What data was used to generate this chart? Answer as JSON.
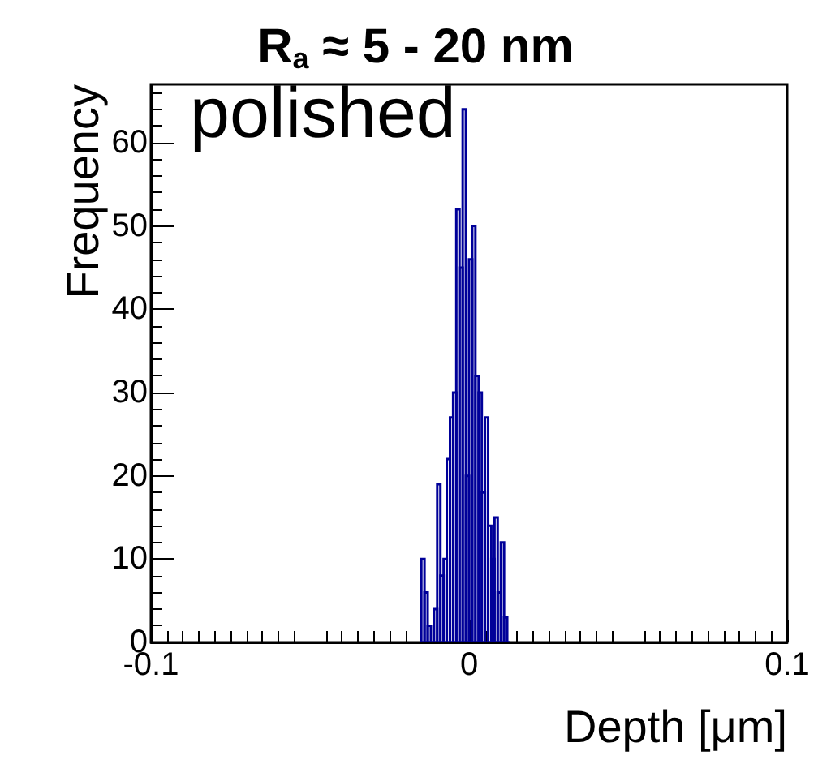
{
  "chart_data": {
    "type": "histogram",
    "title": "R$_{a}$ ≈ 5 - 20 nm",
    "xlabel": "Depth [μm]",
    "ylabel": "Frequency",
    "annotations": [
      "polished"
    ],
    "bins": [
      -0.015,
      -0.014,
      -0.013,
      -0.012,
      -0.011,
      -0.01,
      -0.009,
      -0.008,
      -0.007,
      -0.006,
      -0.005,
      -0.004,
      -0.003,
      -0.002,
      -0.001,
      0,
      0.001,
      0.002,
      0.003,
      0.004,
      0.005,
      0.006,
      0.007,
      0.008,
      0.009,
      0.01,
      0.011,
      0.012,
      0.013
    ],
    "values": [
      10,
      6,
      2,
      0,
      4,
      19,
      8,
      10,
      22,
      27,
      30,
      52,
      45,
      64,
      20,
      46,
      50,
      32,
      30,
      18,
      27,
      14,
      10,
      15,
      6,
      12,
      3,
      0
    ],
    "color": "#000099",
    "xlim": [
      -0.1,
      0.1
    ],
    "xticks": [
      -0.1,
      0,
      0.1
    ],
    "ylim": [
      0,
      67
    ],
    "yticks": [
      0,
      10,
      20,
      30,
      40,
      50,
      60
    ],
    "grid": false
  }
}
